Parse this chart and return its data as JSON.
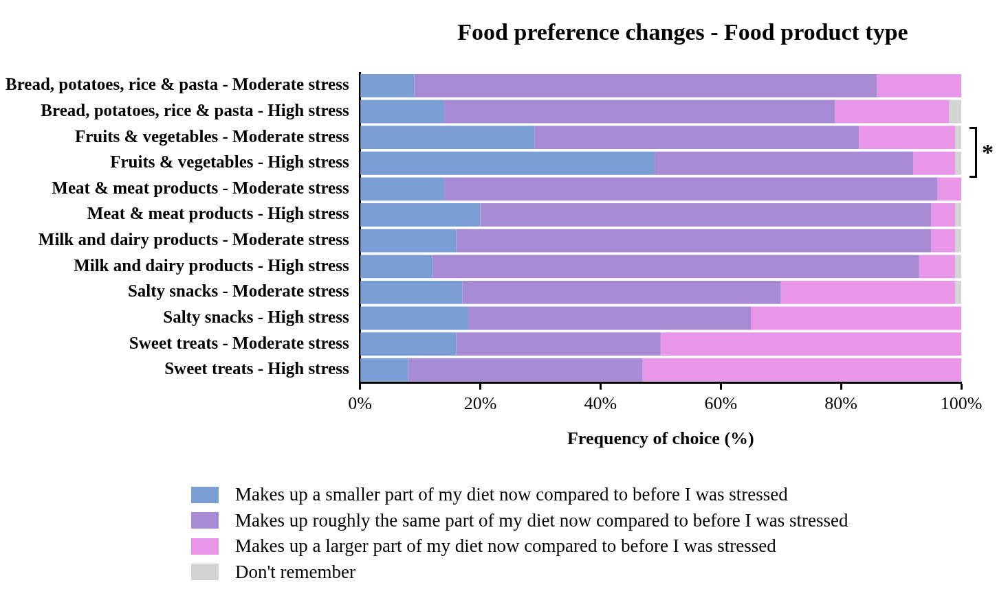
{
  "chart_data": {
    "type": "bar",
    "orientation": "horizontal",
    "stacked": true,
    "title": "Food preference changes - Food product type",
    "xlabel": "Frequency of choice (%)",
    "categories": [
      "Bread, potatoes, rice & pasta - Moderate stress",
      "Bread, potatoes, rice & pasta - High stress",
      "Fruits & vegetables - Moderate stress",
      "Fruits & vegetables - High stress",
      "Meat & meat products - Moderate stress",
      "Meat & meat products - High stress",
      "Milk and dairy products - Moderate stress",
      "Milk and dairy products - High stress",
      "Salty snacks - Moderate stress",
      "Salty snacks - High stress",
      "Sweet treats - Moderate stress",
      "Sweet treats - High stress"
    ],
    "series": [
      {
        "name": "Makes up a smaller part of my diet now compared to before I was stressed",
        "color": "#7b9fd4",
        "values": [
          9,
          14,
          29,
          49,
          14,
          20,
          16,
          12,
          17,
          18,
          16,
          8
        ]
      },
      {
        "name": "Makes up roughly the same part of my diet now compared to before I was stressed",
        "color": "#a68ad4",
        "values": [
          77,
          65,
          54,
          43,
          82,
          75,
          79,
          81,
          53,
          47,
          34,
          39
        ]
      },
      {
        "name": "Makes up a larger part of my diet now compared to before I was stressed",
        "color": "#e896e8",
        "values": [
          14,
          19,
          16,
          7,
          4,
          4,
          4,
          6,
          29,
          35,
          50,
          53
        ]
      },
      {
        "name": "Don't remember",
        "color": "#d4d4d4",
        "values": [
          0,
          2,
          1,
          1,
          0,
          1,
          1,
          1,
          1,
          0,
          0,
          0
        ]
      }
    ],
    "xlim": [
      0,
      100
    ],
    "xticks": [
      {
        "value": 0,
        "label": "0%"
      },
      {
        "value": 20,
        "label": "20%"
      },
      {
        "value": 40,
        "label": "40%"
      },
      {
        "value": 60,
        "label": "60%"
      },
      {
        "value": 80,
        "label": "80%"
      },
      {
        "value": 100,
        "label": "100%"
      }
    ],
    "annotations": [
      "*"
    ],
    "legend": "bottom",
    "grid": false
  }
}
